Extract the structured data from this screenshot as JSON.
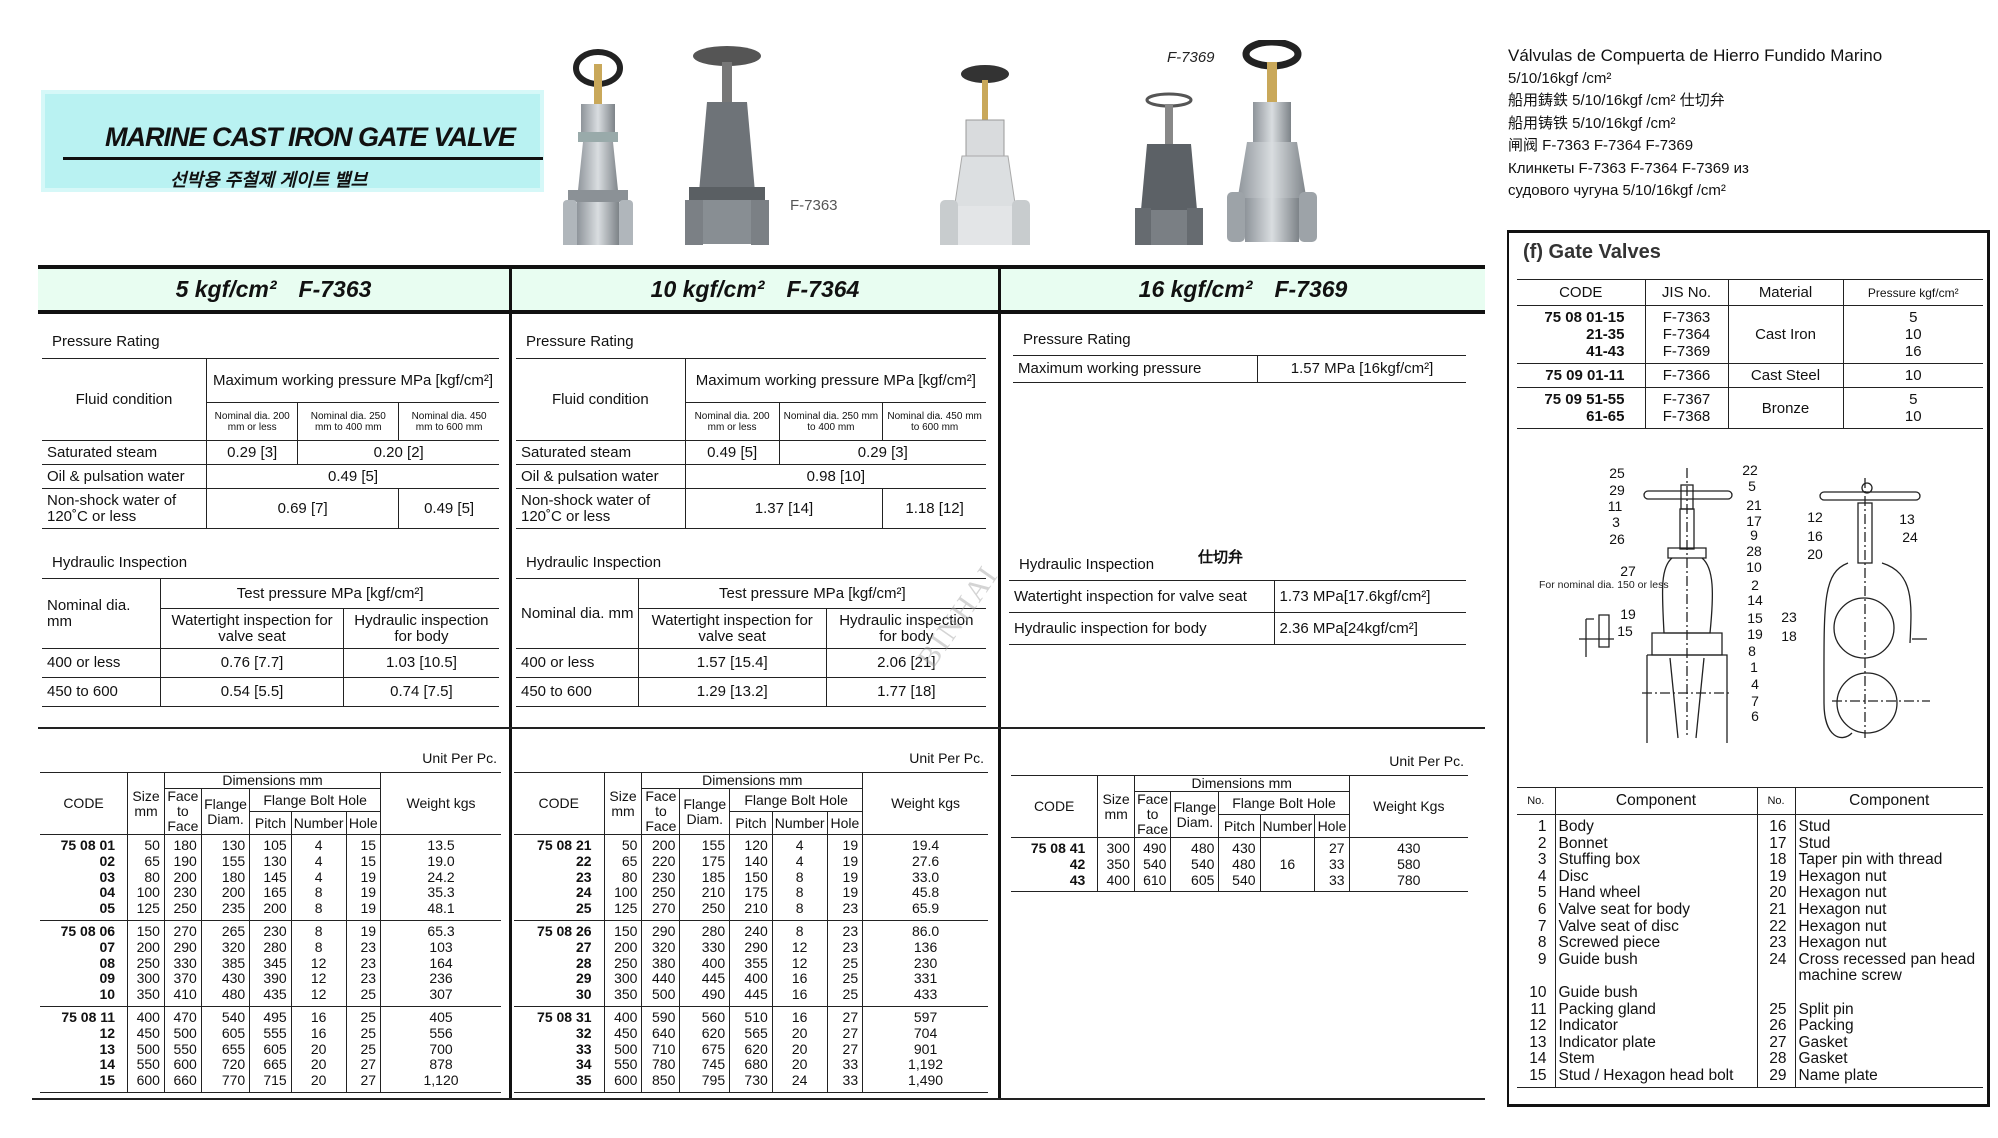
{
  "header": {
    "title": "MARINE CAST IRON GATE VALVE",
    "subtitle": "선박용 주철제 게이트 밸브",
    "accent_color": "#b9f2f2"
  },
  "photos": {
    "label_1": "F-7363",
    "label_2": "F-7369"
  },
  "multilingual": [
    "Válvulas de Compuerta de Hierro Fundido Marino",
    "5/10/16kgf /cm²",
    "船用鋳鉄 5/10/16kgf /cm² 仕切弁",
    "船用铸铁 5/10/16kgf /cm²",
    "闸阀 F-7363 F-7364 F-7369",
    "Клинкеты F-7363 F-7364 F-7369 из",
    "судового чугуна 5/10/16kgf /cm²"
  ],
  "watermark": "BINHAI",
  "columns": [
    {
      "pressure": "5 kgf/cm²",
      "model": "F-7363",
      "pressure_rating": {
        "label": "Pressure Rating",
        "fluid_header": "Fluid condition",
        "max_header": "Maximum working pressure MPa [kgf/cm²]",
        "nominal": [
          "Nominal dia. 200 mm or less",
          "Nominal dia. 250 mm to 400 mm",
          "Nominal dia. 450 mm to 600 mm"
        ],
        "rows": [
          {
            "label": "Saturated steam",
            "values": [
              {
                "v": "0.29 [3]",
                "span": 1
              },
              {
                "v": "0.20 [2]",
                "span": 2
              }
            ]
          },
          {
            "label": "Oil & pulsation water",
            "values": [
              {
                "v": "0.49 [5]",
                "span": 3
              }
            ]
          },
          {
            "label": "Non-shock water of 120˚C or less",
            "values": [
              {
                "v": "0.69 [7]",
                "span": 2
              },
              {
                "v": "0.49 [5]",
                "span": 1
              }
            ]
          }
        ]
      },
      "hydraulic": {
        "label": "Hydraulic Inspection",
        "nominal_header": "Nominal dia. mm",
        "test_header": "Test pressure MPa [kgf/cm²]",
        "sub": [
          "Watertight inspection for valve seat",
          "Hydraulic inspection for body"
        ],
        "rows": [
          [
            "400 or less",
            "0.76 [7.7]",
            "1.03 [10.5]"
          ],
          [
            "450 to 600",
            "0.54 [5.5]",
            "0.74   [7.5]"
          ]
        ]
      },
      "unit": "Unit Per Pc.",
      "dims": {
        "weight_header": "Weight kgs",
        "groups": [
          [
            [
              "75 08 01",
              "50",
              "180",
              "130",
              "105",
              "4",
              "15",
              "13.5"
            ],
            [
              "02",
              "65",
              "190",
              "155",
              "130",
              "4",
              "15",
              "19.0"
            ],
            [
              "03",
              "80",
              "200",
              "180",
              "145",
              "4",
              "19",
              "24.2"
            ],
            [
              "04",
              "100",
              "230",
              "200",
              "165",
              "8",
              "19",
              "35.3"
            ],
            [
              "05",
              "125",
              "250",
              "235",
              "200",
              "8",
              "19",
              "48.1"
            ]
          ],
          [
            [
              "75 08 06",
              "150",
              "270",
              "265",
              "230",
              "8",
              "19",
              "65.3"
            ],
            [
              "07",
              "200",
              "290",
              "320",
              "280",
              "8",
              "23",
              "103"
            ],
            [
              "08",
              "250",
              "330",
              "385",
              "345",
              "12",
              "23",
              "164"
            ],
            [
              "09",
              "300",
              "370",
              "430",
              "390",
              "12",
              "23",
              "236"
            ],
            [
              "10",
              "350",
              "410",
              "480",
              "435",
              "12",
              "25",
              "307"
            ]
          ],
          [
            [
              "75 08 11",
              "400",
              "470",
              "540",
              "495",
              "16",
              "25",
              "405"
            ],
            [
              "12",
              "450",
              "500",
              "605",
              "555",
              "16",
              "25",
              "556"
            ],
            [
              "13",
              "500",
              "550",
              "655",
              "605",
              "20",
              "25",
              "700"
            ],
            [
              "14",
              "550",
              "600",
              "720",
              "665",
              "20",
              "27",
              "878"
            ],
            [
              "15",
              "600",
              "660",
              "770",
              "715",
              "20",
              "27",
              "1,120"
            ]
          ]
        ]
      }
    },
    {
      "pressure": "10 kgf/cm²",
      "model": "F-7364",
      "pressure_rating": {
        "label": "Pressure Rating",
        "fluid_header": "Fluid condition",
        "max_header": "Maximum working pressure MPa [kgf/cm²]",
        "nominal": [
          "Nominal dia. 200 mm or less",
          "Nominal dia. 250 mm to 400 mm",
          "Nominal dia. 450 mm to 600 mm"
        ],
        "rows": [
          {
            "label": "Saturated steam",
            "values": [
              {
                "v": "0.49 [5]",
                "span": 1
              },
              {
                "v": "0.29 [3]",
                "span": 2
              }
            ]
          },
          {
            "label": "Oil & pulsation water",
            "values": [
              {
                "v": "0.98 [10]",
                "span": 3
              }
            ]
          },
          {
            "label": "Non-shock water of 120˚C or less",
            "values": [
              {
                "v": "1.37 [14]",
                "span": 2
              },
              {
                "v": "1.18 [12]",
                "span": 1
              }
            ]
          }
        ]
      },
      "hydraulic": {
        "label": "Hydraulic Inspection",
        "nominal_header": "Nominal dia. mm",
        "test_header": "Test pressure MPa [kgf/cm²]",
        "sub": [
          "Watertight inspection for valve seat",
          "Hydraulic inspection for body"
        ],
        "rows": [
          [
            "400 or less",
            "1.57 [15.4]",
            "2.06 [21]"
          ],
          [
            "450 to 600",
            "1.29 [13.2]",
            "1.77 [18]"
          ]
        ]
      },
      "unit": "Unit Per Pc.",
      "dims": {
        "weight_header": "Weight kgs",
        "groups": [
          [
            [
              "75 08 21",
              "50",
              "200",
              "155",
              "120",
              "4",
              "19",
              "19.4"
            ],
            [
              "22",
              "65",
              "220",
              "175",
              "140",
              "4",
              "19",
              "27.6"
            ],
            [
              "23",
              "80",
              "230",
              "185",
              "150",
              "8",
              "19",
              "33.0"
            ],
            [
              "24",
              "100",
              "250",
              "210",
              "175",
              "8",
              "19",
              "45.8"
            ],
            [
              "25",
              "125",
              "270",
              "250",
              "210",
              "8",
              "23",
              "65.9"
            ]
          ],
          [
            [
              "75 08 26",
              "150",
              "290",
              "280",
              "240",
              "8",
              "23",
              "86.0"
            ],
            [
              "27",
              "200",
              "320",
              "330",
              "290",
              "12",
              "23",
              "136"
            ],
            [
              "28",
              "250",
              "380",
              "400",
              "355",
              "12",
              "25",
              "230"
            ],
            [
              "29",
              "300",
              "440",
              "445",
              "400",
              "16",
              "25",
              "331"
            ],
            [
              "30",
              "350",
              "500",
              "490",
              "445",
              "16",
              "25",
              "433"
            ]
          ],
          [
            [
              "75 08 31",
              "400",
              "590",
              "560",
              "510",
              "16",
              "27",
              "597"
            ],
            [
              "32",
              "450",
              "640",
              "620",
              "565",
              "20",
              "27",
              "704"
            ],
            [
              "33",
              "500",
              "710",
              "675",
              "620",
              "20",
              "27",
              "901"
            ],
            [
              "34",
              "550",
              "780",
              "745",
              "680",
              "20",
              "33",
              "1,192"
            ],
            [
              "35",
              "600",
              "850",
              "795",
              "730",
              "24",
              "33",
              "1,490"
            ]
          ]
        ]
      }
    },
    {
      "pressure": "16 kgf/cm²",
      "model": "F-7369",
      "pressure_rating": {
        "label": "Pressure Rating",
        "rows": [
          [
            "Maximum working pressure",
            "1.57 MPa [16kgf/cm²]"
          ]
        ]
      },
      "hydraulic": {
        "label": "Hydraulic Inspection",
        "note": "仕切弁",
        "rows": [
          [
            "Watertight inspection for valve seat",
            "1.73  MPa[17.6kgf/cm²]"
          ],
          [
            "Hydraulic inspection for body",
            "2.36  MPa[24kgf/cm²]"
          ]
        ]
      },
      "unit": "Unit Per Pc.",
      "dims": {
        "weight_header": "Weight Kgs",
        "merged_number": "16",
        "groups": [
          [
            [
              "75 08 41",
              "300",
              "490",
              "480",
              "430",
              "",
              "27",
              "430"
            ],
            [
              "42",
              "350",
              "540",
              "540",
              "480",
              "",
              "33",
              "580"
            ],
            [
              "43",
              "400",
              "610",
              "605",
              "540",
              "",
              "33",
              "780"
            ]
          ]
        ]
      }
    }
  ],
  "dim_headers": {
    "code": "CODE",
    "size": "Size mm",
    "dimensions": "Dimensions mm",
    "face": "Face to Face",
    "flange": "Flange Diam.",
    "bolt": "Flange Bolt Hole",
    "pitch": "Pitch",
    "number": "Number",
    "hole": "Hole"
  },
  "gate_valves": {
    "title": "(f)  Gate Valves",
    "headers": [
      "CODE",
      "JIS No.",
      "Material",
      "Pressure  kgf/cm²"
    ],
    "rows": [
      [
        "75 08 01-15\n21-35\n41-43",
        "F-7363\nF-7364\nF-7369",
        "Cast Iron",
        "5\n10\n16"
      ],
      [
        "75 09 01-11",
        "F-7366",
        "Cast Steel",
        "10"
      ],
      [
        "75 09 51-55\n61-65",
        "F-7367\nF-7368",
        "Bronze",
        "5\n10"
      ]
    ]
  },
  "diagram": {
    "note": "For nominal dia. 150 or less",
    "callouts": [
      "25",
      "22",
      "29",
      "5",
      "11",
      "21",
      "3",
      "17",
      "26",
      "9",
      "28",
      "27",
      "10",
      "2",
      "14",
      "15",
      "19",
      "8",
      "1",
      "4",
      "7",
      "6",
      "19",
      "15",
      "12",
      "13",
      "16",
      "24",
      "20",
      "23",
      "18"
    ]
  },
  "components": {
    "headers": [
      "No.",
      "Component",
      "No.",
      "Component"
    ],
    "rows": [
      [
        "1",
        "Body",
        "16",
        "Stud"
      ],
      [
        "2",
        "Bonnet",
        "17",
        "Stud"
      ],
      [
        "3",
        "Stuffing box",
        "18",
        "Taper pin with thread"
      ],
      [
        "4",
        "Disc",
        "19",
        "Hexagon nut"
      ],
      [
        "5",
        "Hand wheel",
        "20",
        "Hexagon nut"
      ],
      [
        "6",
        "Valve seat for body",
        "21",
        "Hexagon nut"
      ],
      [
        "7",
        "Valve seat of disc",
        "22",
        "Hexagon nut"
      ],
      [
        "8",
        "Screwed piece",
        "23",
        "Hexagon nut"
      ],
      [
        "9",
        "Guide bush",
        "24",
        "Cross recessed pan head machine screw"
      ],
      [
        "10",
        "Guide bush",
        "",
        ""
      ],
      [
        "11",
        "Packing gland",
        "25",
        "Split pin"
      ],
      [
        "12",
        "Indicator",
        "26",
        "Packing"
      ],
      [
        "13",
        "Indicator plate",
        "27",
        "Gasket"
      ],
      [
        "14",
        "Stem",
        "28",
        "Gasket"
      ],
      [
        "15",
        "Stud / Hexagon head bolt",
        "29",
        "Name plate"
      ]
    ]
  }
}
